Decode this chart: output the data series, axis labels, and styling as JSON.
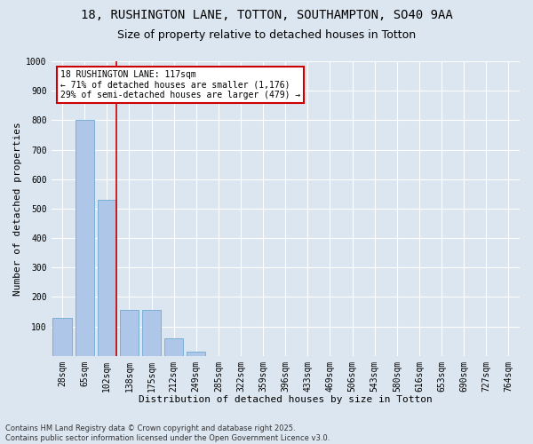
{
  "title_line1": "18, RUSHINGTON LANE, TOTTON, SOUTHAMPTON, SO40 9AA",
  "title_line2": "Size of property relative to detached houses in Totton",
  "xlabel": "Distribution of detached houses by size in Totton",
  "ylabel": "Number of detached properties",
  "categories": [
    "28sqm",
    "65sqm",
    "102sqm",
    "138sqm",
    "175sqm",
    "212sqm",
    "249sqm",
    "285sqm",
    "322sqm",
    "359sqm",
    "396sqm",
    "433sqm",
    "469sqm",
    "506sqm",
    "543sqm",
    "580sqm",
    "616sqm",
    "653sqm",
    "690sqm",
    "727sqm",
    "764sqm"
  ],
  "values": [
    130,
    800,
    530,
    155,
    155,
    60,
    15,
    0,
    0,
    0,
    0,
    0,
    0,
    0,
    0,
    0,
    0,
    0,
    0,
    0,
    0
  ],
  "bar_color": "#aec6e8",
  "bar_edge_color": "#7bafd4",
  "vline_color": "#cc0000",
  "annotation_text": "18 RUSHINGTON LANE: 117sqm\n← 71% of detached houses are smaller (1,176)\n29% of semi-detached houses are larger (479) →",
  "annotation_box_color": "#ffffff",
  "annotation_box_edge": "#cc0000",
  "ylim": [
    0,
    1000
  ],
  "yticks": [
    0,
    100,
    200,
    300,
    400,
    500,
    600,
    700,
    800,
    900,
    1000
  ],
  "bg_color": "#dce6f0",
  "plot_bg_color": "#dce6f0",
  "grid_color": "#ffffff",
  "footer": "Contains HM Land Registry data © Crown copyright and database right 2025.\nContains public sector information licensed under the Open Government Licence v3.0.",
  "title_fontsize": 10,
  "subtitle_fontsize": 9,
  "axis_label_fontsize": 8,
  "tick_fontsize": 7,
  "annotation_fontsize": 7,
  "footer_fontsize": 6
}
